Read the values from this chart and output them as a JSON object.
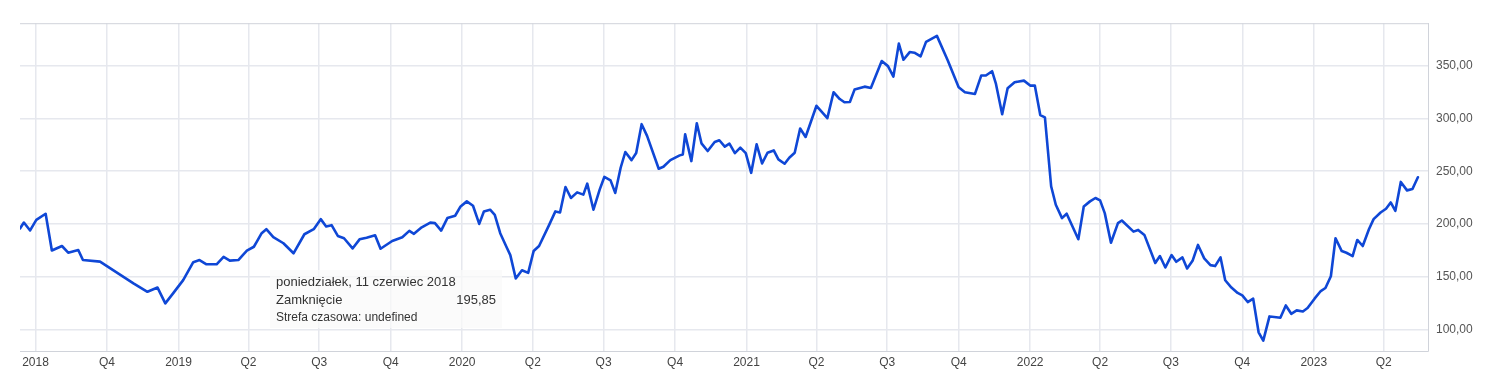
{
  "chart_data": {
    "type": "line",
    "x": [
      "2018-06-11",
      "2018-06-16",
      "2018-06-24",
      "2018-07-02",
      "2018-07-14",
      "2018-07-22",
      "2018-08-04",
      "2018-08-12",
      "2018-08-25",
      "2018-08-31",
      "2018-09-22",
      "2018-11-04",
      "2018-11-22",
      "2018-12-05",
      "2018-12-15",
      "2018-12-25",
      "2019-01-07",
      "2019-01-20",
      "2019-01-28",
      "2019-02-06",
      "2019-02-19",
      "2019-02-28",
      "2019-03-08",
      "2019-03-19",
      "2019-03-30",
      "2019-04-08",
      "2019-04-18",
      "2019-04-24",
      "2019-05-03",
      "2019-05-16",
      "2019-05-29",
      "2019-06-12",
      "2019-06-24",
      "2019-07-03",
      "2019-07-10",
      "2019-07-17",
      "2019-07-25",
      "2019-08-02",
      "2019-08-13",
      "2019-08-22",
      "2019-08-31",
      "2019-09-11",
      "2019-09-18",
      "2019-10-03",
      "2019-10-16",
      "2019-10-25",
      "2019-10-31",
      "2019-11-10",
      "2019-11-21",
      "2019-11-27",
      "2019-12-05",
      "2019-12-13",
      "2019-12-23",
      "2019-12-30",
      "2020-01-07",
      "2020-01-15",
      "2020-01-23",
      "2020-01-29",
      "2020-02-06",
      "2020-02-12",
      "2020-02-19",
      "2020-02-28",
      "2020-03-03",
      "2020-03-10",
      "2020-03-18",
      "2020-03-26",
      "2020-04-02",
      "2020-04-09",
      "2020-04-22",
      "2020-04-30",
      "2020-05-06",
      "2020-05-13",
      "2020-05-20",
      "2020-05-28",
      "2020-06-05",
      "2020-06-10",
      "2020-06-18",
      "2020-06-26",
      "2020-07-02",
      "2020-07-10",
      "2020-07-16",
      "2020-07-23",
      "2020-07-29",
      "2020-08-06",
      "2020-08-12",
      "2020-08-19",
      "2020-08-26",
      "2020-09-10",
      "2020-09-16",
      "2020-09-25",
      "2020-10-07",
      "2020-10-11",
      "2020-10-14",
      "2020-10-22",
      "2020-10-29",
      "2020-11-04",
      "2020-11-12",
      "2020-11-21",
      "2020-11-27",
      "2020-12-04",
      "2020-12-10",
      "2020-12-17",
      "2020-12-24",
      "2020-12-31",
      "2021-01-07",
      "2021-01-14",
      "2021-01-21",
      "2021-01-28",
      "2021-02-05",
      "2021-02-11",
      "2021-02-19",
      "2021-02-25",
      "2021-03-04",
      "2021-03-11",
      "2021-03-18",
      "2021-04-01",
      "2021-04-15",
      "2021-04-23",
      "2021-05-01",
      "2021-05-07",
      "2021-05-14",
      "2021-05-20",
      "2021-06-02",
      "2021-06-10",
      "2021-06-24",
      "2021-07-02",
      "2021-07-09",
      "2021-07-16",
      "2021-07-22",
      "2021-07-30",
      "2021-08-05",
      "2021-08-13",
      "2021-08-20",
      "2021-09-03",
      "2021-09-17",
      "2021-10-01",
      "2021-10-09",
      "2021-10-22",
      "2021-10-30",
      "2021-11-05",
      "2021-11-13",
      "2021-11-18",
      "2021-11-26",
      "2021-12-03",
      "2021-12-12",
      "2021-12-24",
      "2022-01-01",
      "2022-01-07",
      "2022-01-14",
      "2022-01-20",
      "2022-01-28",
      "2022-02-03",
      "2022-02-11",
      "2022-02-17",
      "2022-03-04",
      "2022-03-11",
      "2022-03-19",
      "2022-03-26",
      "2022-04-01",
      "2022-04-07",
      "2022-04-15",
      "2022-04-24",
      "2022-04-29",
      "2022-05-14",
      "2022-05-20",
      "2022-05-28",
      "2022-06-11",
      "2022-06-17",
      "2022-06-24",
      "2022-07-02",
      "2022-07-08",
      "2022-07-16",
      "2022-07-22",
      "2022-07-29",
      "2022-08-05",
      "2022-08-13",
      "2022-08-21",
      "2022-08-27",
      "2022-09-03",
      "2022-09-09",
      "2022-09-17",
      "2022-09-25",
      "2022-10-01",
      "2022-10-08",
      "2022-10-15",
      "2022-10-22",
      "2022-10-28",
      "2022-11-05",
      "2022-11-19",
      "2022-11-26",
      "2022-12-03",
      "2022-12-10",
      "2022-12-18",
      "2022-12-24",
      "2023-01-02",
      "2023-01-10",
      "2023-01-16",
      "2023-01-23",
      "2023-01-29",
      "2023-02-06",
      "2023-02-12",
      "2023-02-20",
      "2023-02-26",
      "2023-03-05",
      "2023-03-13",
      "2023-03-19",
      "2023-03-28",
      "2023-04-04",
      "2023-04-10",
      "2023-04-16",
      "2023-04-23",
      "2023-05-01",
      "2023-05-08",
      "2023-05-15"
    ],
    "series": [
      {
        "color": "#0f47d6",
        "values": [
          195.85,
          201.5,
          194,
          204,
          209.8,
          175,
          179.3,
          173,
          175.5,
          166,
          164.5,
          144,
          136,
          140,
          125,
          134.5,
          147,
          164,
          166,
          162,
          162,
          169,
          165.5,
          166,
          175,
          178.6,
          191.4,
          195.2,
          187.6,
          181.9,
          172.4,
          190.4,
          195.2,
          204.7,
          197.7,
          199,
          188.8,
          186.6,
          177,
          185.6,
          187.2,
          189.5,
          176.7,
          184,
          187.6,
          193.6,
          190.8,
          197,
          201.4,
          200.9,
          193.9,
          205.7,
          207.9,
          216.7,
          221.5,
          217.4,
          200.2,
          212,
          213.6,
          208.8,
          191.4,
          177,
          170.7,
          148.6,
          156.3,
          153.9,
          174.5,
          179.3,
          199.3,
          212,
          211,
          235.1,
          224.7,
          230,
          227.9,
          238.3,
          213.6,
          232.6,
          244.6,
          241.4,
          229.5,
          253.3,
          268.2,
          260.5,
          267.2,
          294.5,
          283.4,
          252.4,
          254.2,
          260.5,
          265,
          265.9,
          284.9,
          259.6,
          295.4,
          276.4,
          269.1,
          277.7,
          279.3,
          273.3,
          276.1,
          267.2,
          272.3,
          267.2,
          248.5,
          275.5,
          257.4,
          267.5,
          269.7,
          261.2,
          257.1,
          262.8,
          267.5,
          290.4,
          282.4,
          311.9,
          300.2,
          324.7,
          318.3,
          315.2,
          315.5,
          327.2,
          330,
          328.8,
          354.2,
          349.4,
          339.5,
          370.7,
          355.4,
          362.7,
          362.1,
          358.6,
          372.3,
          378,
          354.8,
          329.4,
          324.7,
          323.1,
          340.5,
          340.5,
          344.6,
          332.6,
          304,
          328.5,
          334.2,
          335.7,
          331,
          331,
          303.1,
          300.9,
          235.8,
          218.3,
          205.7,
          209.8,
          185.7,
          216.7,
          221.5,
          224.7,
          222.4,
          210.4,
          182.4,
          200.9,
          203.4,
          192.9,
          194.5,
          189.8,
          163.3,
          169.8,
          159,
          170.7,
          164.4,
          168.5,
          158,
          165.3,
          180.3,
          167.6,
          161.2,
          160.3,
          168.5,
          146.9,
          140,
          134.9,
          132.6,
          126.3,
          129.5,
          97.7,
          89.8,
          112.7,
          111.4,
          123.1,
          115.2,
          118.4,
          117.4,
          120.6,
          129.5,
          136.7,
          139.6,
          150.7,
          186.6,
          174.5,
          172.9,
          169.8,
          185,
          179.3,
          195.2,
          204.7,
          211,
          214.5,
          220.5,
          212.6,
          239.9,
          231.9,
          233.2,
          244.3
        ]
      }
    ],
    "xlim": [
      "2018-06-11",
      "2023-05-28"
    ],
    "xticks": [
      {
        "value": "2018-07-01",
        "label": "2018"
      },
      {
        "value": "2018-10-01",
        "label": "Q4"
      },
      {
        "value": "2019-01-01",
        "label": "2019"
      },
      {
        "value": "2019-04-01",
        "label": "Q2"
      },
      {
        "value": "2019-07-01",
        "label": "Q3"
      },
      {
        "value": "2019-10-01",
        "label": "Q4"
      },
      {
        "value": "2020-01-01",
        "label": "2020"
      },
      {
        "value": "2020-04-01",
        "label": "Q2"
      },
      {
        "value": "2020-07-01",
        "label": "Q3"
      },
      {
        "value": "2020-10-01",
        "label": "Q4"
      },
      {
        "value": "2021-01-01",
        "label": "2021"
      },
      {
        "value": "2021-04-01",
        "label": "Q2"
      },
      {
        "value": "2021-07-01",
        "label": "Q3"
      },
      {
        "value": "2021-10-01",
        "label": "Q4"
      },
      {
        "value": "2022-01-01",
        "label": "2022"
      },
      {
        "value": "2022-04-01",
        "label": "Q2"
      },
      {
        "value": "2022-07-01",
        "label": "Q3"
      },
      {
        "value": "2022-10-01",
        "label": "Q4"
      },
      {
        "value": "2023-01-01",
        "label": "2023"
      },
      {
        "value": "2023-04-01",
        "label": "Q2"
      }
    ],
    "ylim": [
      80,
      390
    ],
    "yticks": [
      {
        "value": 100,
        "label": "100,00"
      },
      {
        "value": 150,
        "label": "150,00"
      },
      {
        "value": 200,
        "label": "200,00"
      },
      {
        "value": 250,
        "label": "250,00"
      },
      {
        "value": 300,
        "label": "300,00"
      },
      {
        "value": 350,
        "label": "350,00"
      }
    ],
    "grid": true,
    "marker": "none",
    "line_style": "solid",
    "annotations": [
      "poniedziałek, 11 czerwiec 2018",
      "Zamknięcie",
      "195,85",
      "Strefa czasowa: undefined"
    ]
  }
}
